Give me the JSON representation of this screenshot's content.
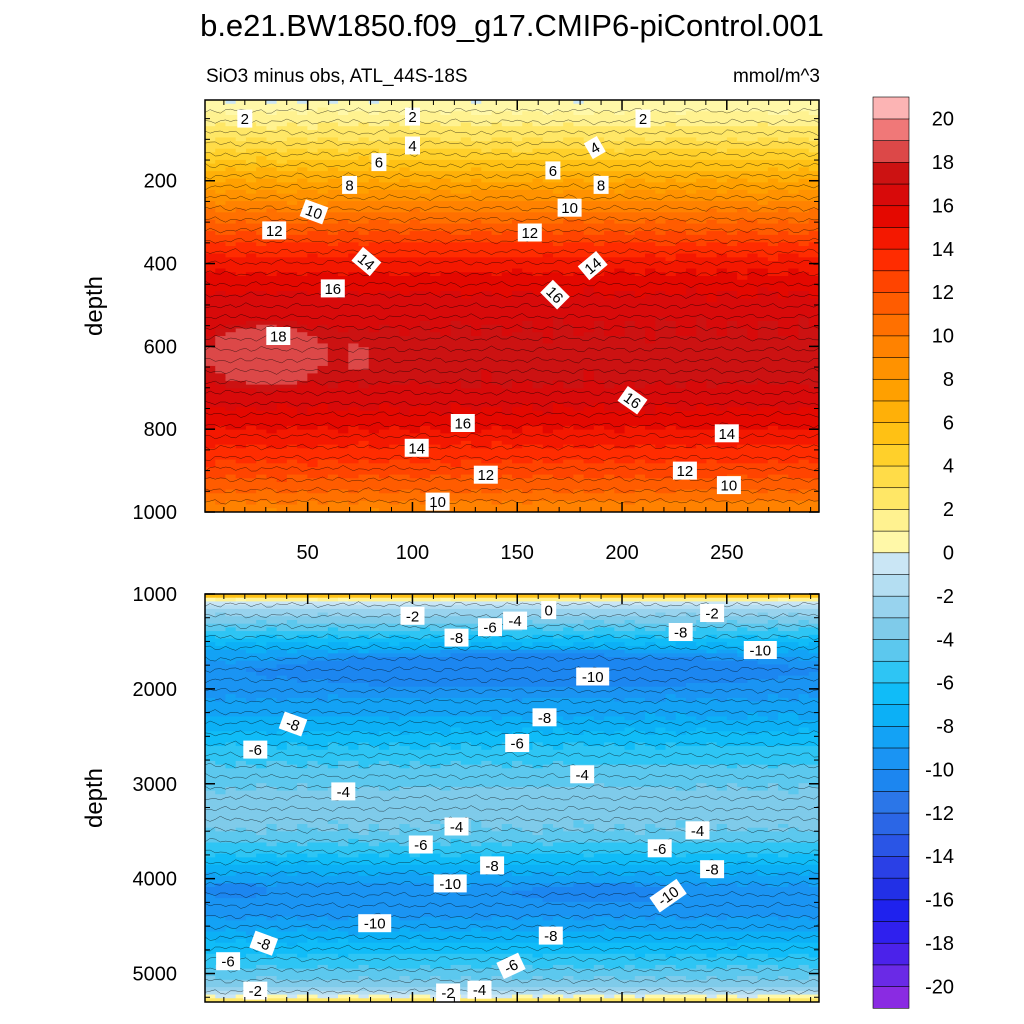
{
  "figure": {
    "title": "b.e21.BW1850.f09_g17.CMIP6-piControl.001",
    "panel_left_label": "SiO3 minus obs, ATL_44S-18S",
    "panel_right_label": "mmol/m^3"
  },
  "chart_data": [
    {
      "type": "heatmap",
      "name": "upper-panel",
      "title": "SiO3 minus obs, ATL_44S-18S",
      "units": "mmol/m^3",
      "xlabel": "",
      "ylabel": "depth",
      "xlim": [
        1,
        294
      ],
      "ylim": [
        1000,
        5
      ],
      "y_inverted": true,
      "xticks": [
        50,
        100,
        150,
        200,
        250
      ],
      "yticks": [
        200,
        400,
        600,
        800,
        1000
      ],
      "profile": [
        {
          "depth": 5,
          "value": 0
        },
        {
          "depth": 50,
          "value": 1.5
        },
        {
          "depth": 100,
          "value": 3
        },
        {
          "depth": 150,
          "value": 5
        },
        {
          "depth": 200,
          "value": 7
        },
        {
          "depth": 250,
          "value": 9
        },
        {
          "depth": 300,
          "value": 11
        },
        {
          "depth": 350,
          "value": 13
        },
        {
          "depth": 400,
          "value": 14.5
        },
        {
          "depth": 470,
          "value": 16
        },
        {
          "depth": 530,
          "value": 16.8
        },
        {
          "depth": 600,
          "value": 17.3
        },
        {
          "depth": 680,
          "value": 17.2
        },
        {
          "depth": 720,
          "value": 16.5
        },
        {
          "depth": 780,
          "value": 15.5
        },
        {
          "depth": 820,
          "value": 14.5
        },
        {
          "depth": 880,
          "value": 13
        },
        {
          "depth": 950,
          "value": 11
        },
        {
          "depth": 1000,
          "value": 9
        }
      ],
      "blobs": [
        {
          "x": [
            1,
            60
          ],
          "depth": [
            545,
            700
          ],
          "value": 18.5
        },
        {
          "x": [
            67,
            81
          ],
          "depth": [
            590,
            660
          ],
          "value": 18.2
        },
        {
          "x": [
            200,
            215
          ],
          "depth": [
            600,
            650
          ],
          "value": 17.8
        }
      ],
      "contour_labels": [
        {
          "x": 20,
          "depth": 50,
          "text": "2",
          "angle": 0
        },
        {
          "x": 100,
          "depth": 45,
          "text": "2",
          "angle": 0
        },
        {
          "x": 210,
          "depth": 50,
          "text": "2",
          "angle": 0
        },
        {
          "x": 100,
          "depth": 115,
          "text": "4",
          "angle": 0
        },
        {
          "x": 187,
          "depth": 120,
          "text": "4",
          "angle": -30
        },
        {
          "x": 84,
          "depth": 155,
          "text": "6",
          "angle": 0
        },
        {
          "x": 167,
          "depth": 175,
          "text": "6",
          "angle": 0
        },
        {
          "x": 70,
          "depth": 210,
          "text": "8",
          "angle": 0
        },
        {
          "x": 190,
          "depth": 210,
          "text": "8",
          "angle": 0
        },
        {
          "x": 53,
          "depth": 275,
          "text": "10",
          "angle": 20
        },
        {
          "x": 175,
          "depth": 265,
          "text": "10",
          "angle": 0
        },
        {
          "x": 34,
          "depth": 320,
          "text": "12",
          "angle": 0
        },
        {
          "x": 156,
          "depth": 325,
          "text": "12",
          "angle": 0
        },
        {
          "x": 78,
          "depth": 395,
          "text": "14",
          "angle": 40
        },
        {
          "x": 186,
          "depth": 405,
          "text": "14",
          "angle": -40
        },
        {
          "x": 62,
          "depth": 460,
          "text": "16",
          "angle": 0
        },
        {
          "x": 168,
          "depth": 475,
          "text": "16",
          "angle": 45
        },
        {
          "x": 36,
          "depth": 575,
          "text": "18",
          "angle": 0
        },
        {
          "x": 205,
          "depth": 730,
          "text": "16",
          "angle": 35
        },
        {
          "x": 124,
          "depth": 785,
          "text": "16",
          "angle": 0
        },
        {
          "x": 102,
          "depth": 845,
          "text": "14",
          "angle": 0
        },
        {
          "x": 250,
          "depth": 810,
          "text": "14",
          "angle": 0
        },
        {
          "x": 135,
          "depth": 910,
          "text": "12",
          "angle": 0
        },
        {
          "x": 230,
          "depth": 900,
          "text": "12",
          "angle": 0
        },
        {
          "x": 112,
          "depth": 975,
          "text": "10",
          "angle": 0
        },
        {
          "x": 251,
          "depth": 935,
          "text": "10",
          "angle": 0
        }
      ]
    },
    {
      "type": "heatmap",
      "name": "lower-panel",
      "xlabel": "",
      "ylabel": "depth",
      "xlim": [
        1,
        294
      ],
      "ylim": [
        5300,
        1000
      ],
      "y_inverted": true,
      "yticks": [
        1000,
        2000,
        3000,
        4000,
        5000
      ],
      "profile": [
        {
          "depth": 1000,
          "value": 9
        },
        {
          "depth": 1030,
          "value": 4
        },
        {
          "depth": 1070,
          "value": 0
        },
        {
          "depth": 1150,
          "value": -2
        },
        {
          "depth": 1300,
          "value": -4
        },
        {
          "depth": 1450,
          "value": -6
        },
        {
          "depth": 1600,
          "value": -8
        },
        {
          "depth": 1800,
          "value": -9.7
        },
        {
          "depth": 2000,
          "value": -9.5
        },
        {
          "depth": 2300,
          "value": -8
        },
        {
          "depth": 2600,
          "value": -6
        },
        {
          "depth": 2900,
          "value": -4.5
        },
        {
          "depth": 3200,
          "value": -3.5
        },
        {
          "depth": 3500,
          "value": -4
        },
        {
          "depth": 3750,
          "value": -6
        },
        {
          "depth": 3950,
          "value": -8
        },
        {
          "depth": 4150,
          "value": -9.8
        },
        {
          "depth": 4350,
          "value": -9.5
        },
        {
          "depth": 4550,
          "value": -8
        },
        {
          "depth": 4800,
          "value": -6
        },
        {
          "depth": 5000,
          "value": -4.5
        },
        {
          "depth": 5150,
          "value": -3
        },
        {
          "depth": 5220,
          "value": -1
        },
        {
          "depth": 5260,
          "value": 1
        },
        {
          "depth": 5300,
          "value": 4
        }
      ],
      "blobs": [
        {
          "x": [
            20,
            294
          ],
          "depth": [
            1600,
            2000
          ],
          "value": -10.3
        },
        {
          "x": [
            1,
            30
          ],
          "depth": [
            4050,
            4200
          ],
          "value": -10.6
        },
        {
          "x": [
            150,
            230
          ],
          "depth": [
            4050,
            4250
          ],
          "value": -10.4
        },
        {
          "x": [
            60,
            294
          ],
          "depth": [
            3050,
            3380
          ],
          "value": -3.6
        }
      ],
      "contour_labels": [
        {
          "x": 100,
          "depth": 1230,
          "text": "-2",
          "angle": 0
        },
        {
          "x": 149,
          "depth": 1280,
          "text": "-4",
          "angle": 0
        },
        {
          "x": 165,
          "depth": 1170,
          "text": "0",
          "angle": 0
        },
        {
          "x": 137,
          "depth": 1350,
          "text": "-6",
          "angle": 0
        },
        {
          "x": 121,
          "depth": 1460,
          "text": "-8",
          "angle": 0
        },
        {
          "x": 243,
          "depth": 1200,
          "text": "-2",
          "angle": 0
        },
        {
          "x": 228,
          "depth": 1400,
          "text": "-8",
          "angle": 0
        },
        {
          "x": 266,
          "depth": 1590,
          "text": "-10",
          "angle": 0
        },
        {
          "x": 186,
          "depth": 1870,
          "text": "-10",
          "angle": 0
        },
        {
          "x": 43,
          "depth": 2370,
          "text": "-8",
          "angle": 20
        },
        {
          "x": 163,
          "depth": 2300,
          "text": "-8",
          "angle": 0
        },
        {
          "x": 25,
          "depth": 2640,
          "text": "-6",
          "angle": 0
        },
        {
          "x": 150,
          "depth": 2570,
          "text": "-6",
          "angle": 0
        },
        {
          "x": 181,
          "depth": 2900,
          "text": "-4",
          "angle": 0
        },
        {
          "x": 67,
          "depth": 3080,
          "text": "-4",
          "angle": 0
        },
        {
          "x": 121,
          "depth": 3450,
          "text": "-4",
          "angle": 0
        },
        {
          "x": 236,
          "depth": 3490,
          "text": "-4",
          "angle": 0
        },
        {
          "x": 104,
          "depth": 3640,
          "text": "-6",
          "angle": 0
        },
        {
          "x": 218,
          "depth": 3680,
          "text": "-6",
          "angle": 0
        },
        {
          "x": 138,
          "depth": 3860,
          "text": "-8",
          "angle": 0
        },
        {
          "x": 243,
          "depth": 3900,
          "text": "-8",
          "angle": 0
        },
        {
          "x": 118,
          "depth": 4050,
          "text": "-10",
          "angle": 0
        },
        {
          "x": 222,
          "depth": 4180,
          "text": "-10",
          "angle": -35
        },
        {
          "x": 82,
          "depth": 4470,
          "text": "-10",
          "angle": 0
        },
        {
          "x": 29,
          "depth": 4680,
          "text": "-8",
          "angle": 20
        },
        {
          "x": 166,
          "depth": 4600,
          "text": "-8",
          "angle": 0
        },
        {
          "x": 12,
          "depth": 4870,
          "text": "-6",
          "angle": 0
        },
        {
          "x": 147,
          "depth": 4920,
          "text": "-6",
          "angle": -25
        },
        {
          "x": 25,
          "depth": 5180,
          "text": "-2",
          "angle": 0
        },
        {
          "x": 117,
          "depth": 5200,
          "text": "-2",
          "angle": 0
        },
        {
          "x": 132,
          "depth": 5170,
          "text": "-4",
          "angle": 0
        }
      ]
    },
    {
      "type": "colorbar",
      "name": "colorbar",
      "levels": [
        -21,
        -20,
        -19,
        -18,
        -17,
        -16,
        -15,
        -14,
        -13,
        -12,
        -11,
        -10,
        -9,
        -8,
        -7,
        -6,
        -5,
        -4,
        -3,
        -2,
        -1,
        0,
        1,
        2,
        3,
        4,
        5,
        6,
        7,
        8,
        9,
        10,
        11,
        12,
        13,
        14,
        15,
        16,
        17,
        18,
        19,
        20,
        21
      ],
      "tick_labels": [
        "-20",
        "-18",
        "-16",
        "-14",
        "-12",
        "-10",
        "-8",
        "-6",
        "-4",
        "-2",
        "0",
        "2",
        "4",
        "6",
        "8",
        "10",
        "12",
        "14",
        "16",
        "18",
        "20"
      ],
      "colors": [
        "#8a2be2",
        "#6a2ae6",
        "#4b22ea",
        "#2f20ee",
        "#1f22ee",
        "#2230e6",
        "#2a40e6",
        "#2a55e6",
        "#2b66e6",
        "#2b76e8",
        "#1c86f0",
        "#1a94f3",
        "#13a2f5",
        "#0cb0f6",
        "#10bcf8",
        "#2ec5f4",
        "#5cc8ee",
        "#7fcbea",
        "#98d3ee",
        "#b4def2",
        "#cae6f5",
        "#fff8a8",
        "#fff290",
        "#ffe766",
        "#ffdc48",
        "#ffd02a",
        "#ffc114",
        "#ffb008",
        "#ffa000",
        "#ff9200",
        "#ff8200",
        "#ff7000",
        "#ff5c00",
        "#ff4400",
        "#ff2c00",
        "#f41800",
        "#e40800",
        "#d80a0a",
        "#cc1212",
        "#dc4848",
        "#f07878",
        "#fcb4b4"
      ]
    }
  ]
}
